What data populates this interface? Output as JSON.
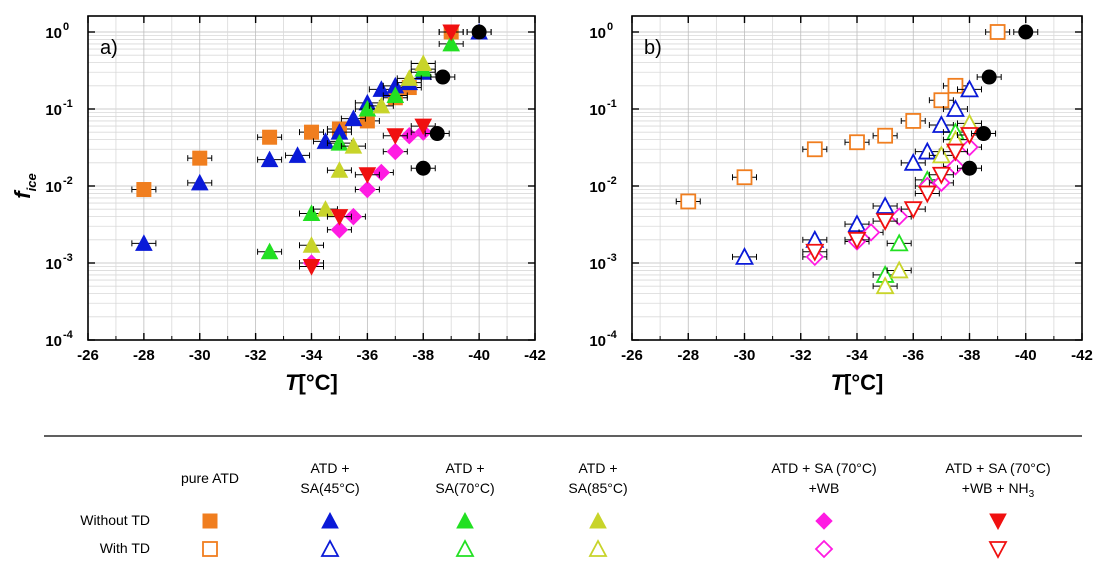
{
  "chart_data": [
    {
      "type": "scatter",
      "panel_label": "a)",
      "xlabel": "T[°C]",
      "ylabel": "f_ice",
      "ylabel_main": "f",
      "ylabel_sub": "ice",
      "xlim": [
        -26,
        -42
      ],
      "ylim": [
        0.0001,
        1
      ],
      "y_scale": "log",
      "x_ticks": [
        "-26",
        "-28",
        "-30",
        "-32",
        "-34",
        "-36",
        "-38",
        "-40",
        "-42"
      ],
      "y_ticks": [
        "10",
        "10",
        "10",
        "10",
        "10"
      ],
      "y_tick_exponents": [
        "-4",
        "-3",
        "-2",
        "-1",
        "0"
      ],
      "grid": true,
      "series": [
        {
          "key": "pure-atd",
          "marker": "square",
          "fill": true,
          "color": "#F07E1F",
          "x": [
            -28,
            -30,
            -32.5,
            -34,
            -35,
            -36,
            -37,
            -37.5,
            -39
          ],
          "y": [
            0.009,
            0.023,
            0.043,
            0.05,
            0.055,
            0.07,
            0.14,
            0.19,
            1.0
          ]
        },
        {
          "key": "sa45",
          "marker": "triangle-up",
          "fill": true,
          "color": "#0A1AD8",
          "x": [
            -28,
            -30,
            -32.5,
            -33.5,
            -34.5,
            -35,
            -35.5,
            -36,
            -36.5,
            -37,
            -37.5,
            -38,
            -40
          ],
          "y": [
            0.0018,
            0.011,
            0.022,
            0.025,
            0.038,
            0.05,
            0.075,
            0.12,
            0.18,
            0.2,
            0.22,
            0.3,
            1.0
          ]
        },
        {
          "key": "sa70",
          "marker": "triangle-up",
          "fill": true,
          "color": "#22E022",
          "x": [
            -32.5,
            -34,
            -35,
            -36,
            -37,
            -38,
            -39
          ],
          "y": [
            0.0014,
            0.0044,
            0.036,
            0.1,
            0.15,
            0.33,
            0.7
          ]
        },
        {
          "key": "sa85",
          "marker": "triangle-up",
          "fill": true,
          "color": "#C8D42A",
          "x": [
            -34,
            -34.5,
            -35,
            -35.5,
            -36.5,
            -37.5,
            -38
          ],
          "y": [
            0.0017,
            0.005,
            0.016,
            0.033,
            0.11,
            0.25,
            0.39
          ]
        },
        {
          "key": "sa70-wb",
          "marker": "diamond",
          "fill": true,
          "color": "#FF1BE2",
          "x": [
            -34,
            -35,
            -35.5,
            -36,
            -36.5,
            -37,
            -37.5,
            -38
          ],
          "y": [
            0.001,
            0.0027,
            0.004,
            0.009,
            0.015,
            0.028,
            0.045,
            0.05
          ]
        },
        {
          "key": "sa70-wb-nh3",
          "marker": "triangle-down",
          "fill": true,
          "color": "#F01010",
          "x": [
            -34,
            -35,
            -36,
            -37,
            -38,
            -39
          ],
          "y": [
            0.0009,
            0.004,
            0.014,
            0.045,
            0.06,
            1.0
          ]
        },
        {
          "key": "black",
          "marker": "circle",
          "fill": true,
          "color": "#000000",
          "x": [
            -38,
            -38.5,
            -38.7,
            -40
          ],
          "y": [
            0.017,
            0.048,
            0.26,
            1.0
          ]
        }
      ]
    },
    {
      "type": "scatter",
      "panel_label": "b)",
      "xlabel": "T[°C]",
      "ylabel": "",
      "xlim": [
        -26,
        -42
      ],
      "ylim": [
        0.0001,
        1
      ],
      "y_scale": "log",
      "x_ticks": [
        "-26",
        "-28",
        "-30",
        "-32",
        "-34",
        "-36",
        "-38",
        "-40",
        "-42"
      ],
      "y_ticks": [
        "10",
        "10",
        "10",
        "10",
        "10"
      ],
      "y_tick_exponents": [
        "-4",
        "-3",
        "-2",
        "-1",
        "0"
      ],
      "grid": true,
      "series": [
        {
          "key": "pure-atd",
          "marker": "square",
          "fill": false,
          "color": "#F07E1F",
          "x": [
            -28,
            -30,
            -32.5,
            -34,
            -35,
            -36,
            -37,
            -37.5,
            -39
          ],
          "y": [
            0.0063,
            0.013,
            0.03,
            0.037,
            0.045,
            0.07,
            0.13,
            0.2,
            1.0
          ]
        },
        {
          "key": "sa45",
          "marker": "triangle-up",
          "fill": false,
          "color": "#0A1AD8",
          "x": [
            -30,
            -32.5,
            -34,
            -35,
            -36,
            -36.5,
            -37,
            -37.5,
            -38
          ],
          "y": [
            0.0012,
            0.002,
            0.0032,
            0.0055,
            0.02,
            0.028,
            0.062,
            0.1,
            0.18
          ]
        },
        {
          "key": "sa70",
          "marker": "triangle-up",
          "fill": false,
          "color": "#22E022",
          "x": [
            -35,
            -35.5,
            -36.5,
            -37.5
          ],
          "y": [
            0.0007,
            0.0018,
            0.012,
            0.05
          ]
        },
        {
          "key": "sa85",
          "marker": "triangle-up",
          "fill": false,
          "color": "#C8D42A",
          "x": [
            -35,
            -35.5,
            -37,
            -37.5,
            -38
          ],
          "y": [
            0.0005,
            0.0008,
            0.025,
            0.04,
            0.065
          ]
        },
        {
          "key": "sa70-wb",
          "marker": "diamond",
          "fill": false,
          "color": "#FF1BE2",
          "x": [
            -32.5,
            -34,
            -34.5,
            -35.5,
            -36.5,
            -37,
            -37.5,
            -38
          ],
          "y": [
            0.0012,
            0.0019,
            0.0025,
            0.004,
            0.01,
            0.011,
            0.018,
            0.032
          ]
        },
        {
          "key": "sa70-wb-nh3",
          "marker": "triangle-down",
          "fill": false,
          "color": "#F01010",
          "x": [
            -32.5,
            -34,
            -35,
            -36,
            -36.5,
            -37,
            -37.5,
            -38
          ],
          "y": [
            0.0014,
            0.002,
            0.0035,
            0.005,
            0.008,
            0.014,
            0.028,
            0.046
          ]
        },
        {
          "key": "black",
          "marker": "circle",
          "fill": true,
          "color": "#000000",
          "x": [
            -38,
            -38.5,
            -38.7,
            -40
          ],
          "y": [
            0.017,
            0.048,
            0.26,
            1.0
          ]
        }
      ]
    }
  ],
  "legend": {
    "columns": [
      {
        "line1": "pure ATD",
        "line2": ""
      },
      {
        "line1": "ATD +",
        "line2": "SA(45°C)"
      },
      {
        "line1": "ATD +",
        "line2": "SA(70°C)"
      },
      {
        "line1": "ATD +",
        "line2": "SA(85°C)"
      },
      {
        "line1": "ATD + SA (70°C)",
        "line2": "+WB"
      },
      {
        "line1": "ATD + SA (70°C)",
        "line2": "+WB + NH",
        "line2_sub": "3"
      }
    ],
    "rows": [
      "Without TD",
      "With TD"
    ],
    "symbols_without": [
      "■",
      "▲",
      "▲",
      "▲",
      "◆",
      "▼"
    ],
    "symbols_with": [
      "□",
      "△",
      "△",
      "△",
      "◇",
      "▽"
    ],
    "colors": [
      "#F07E1F",
      "#0A1AD8",
      "#22E022",
      "#C8D42A",
      "#FF1BE2",
      "#F01010"
    ]
  }
}
